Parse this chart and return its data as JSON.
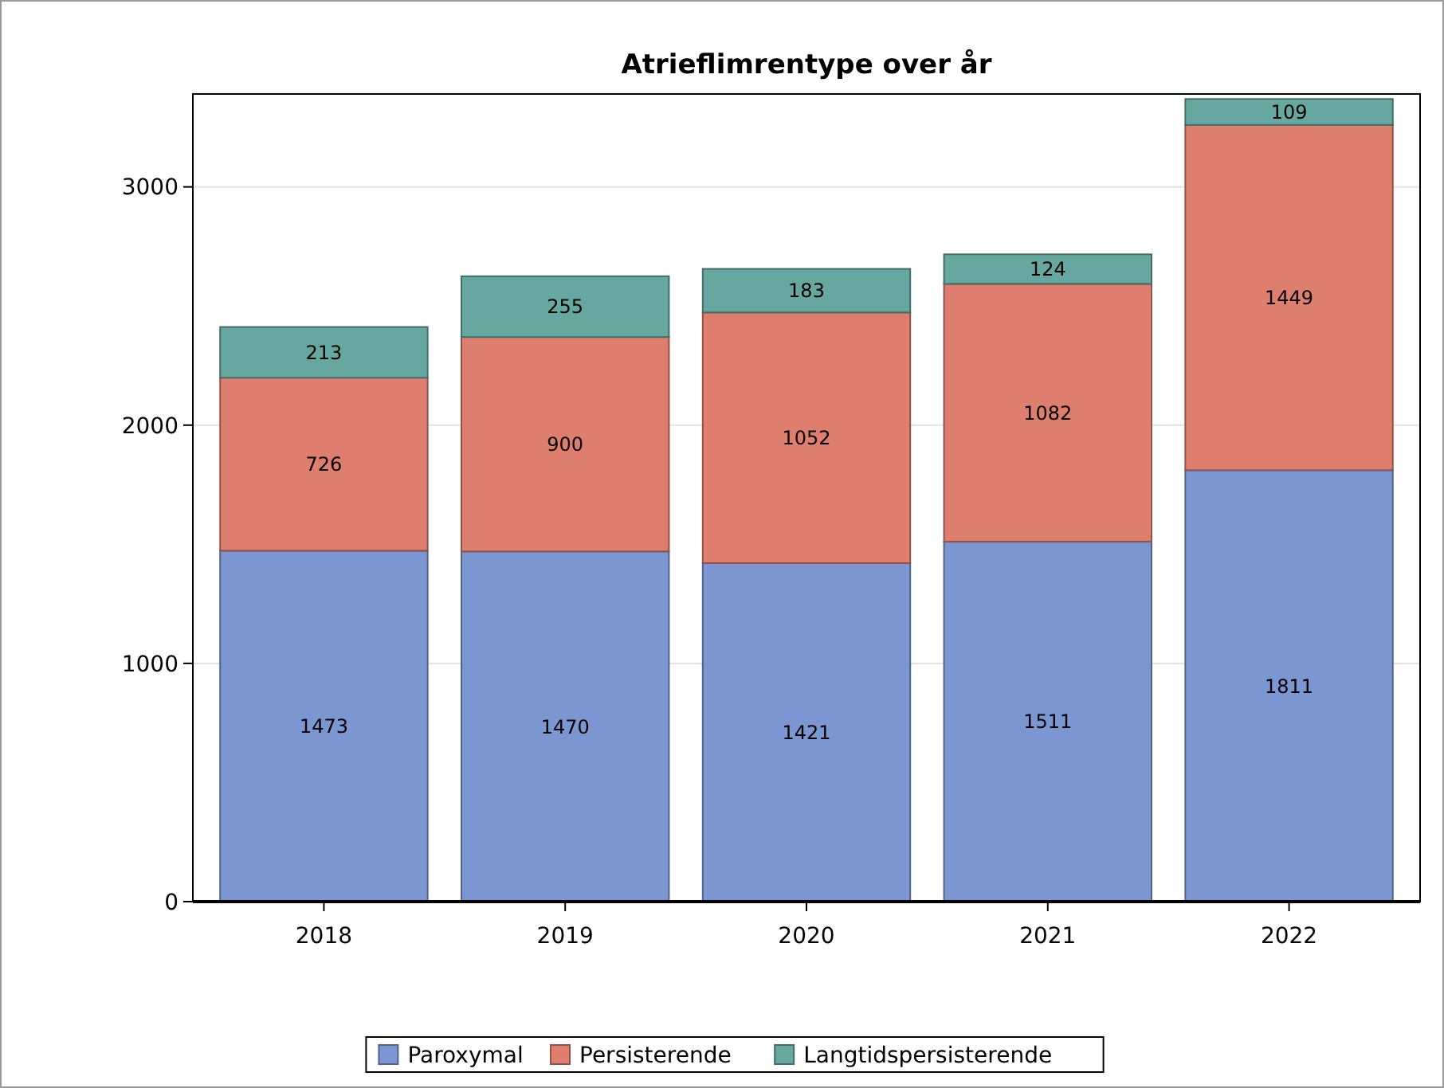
{
  "chart_data": {
    "type": "bar",
    "title": "Atrieflimrentype over år",
    "categories": [
      "2018",
      "2019",
      "2020",
      "2021",
      "2022"
    ],
    "series": [
      {
        "name": "Paroxymal",
        "color": "#7b96d0",
        "values": [
          1473,
          1470,
          1421,
          1511,
          1811
        ]
      },
      {
        "name": "Persisterende",
        "color": "#de7e6e",
        "values": [
          726,
          900,
          1052,
          1082,
          1449
        ]
      },
      {
        "name": "Langtidspersisterende",
        "color": "#66a8a0",
        "values": [
          213,
          255,
          183,
          124,
          109
        ]
      }
    ],
    "stacked": true,
    "data_labels": true,
    "ylim": [
      0,
      3390
    ],
    "yticks": [
      0,
      1000,
      2000,
      3000
    ],
    "grid": "y",
    "legend": "bottom"
  }
}
